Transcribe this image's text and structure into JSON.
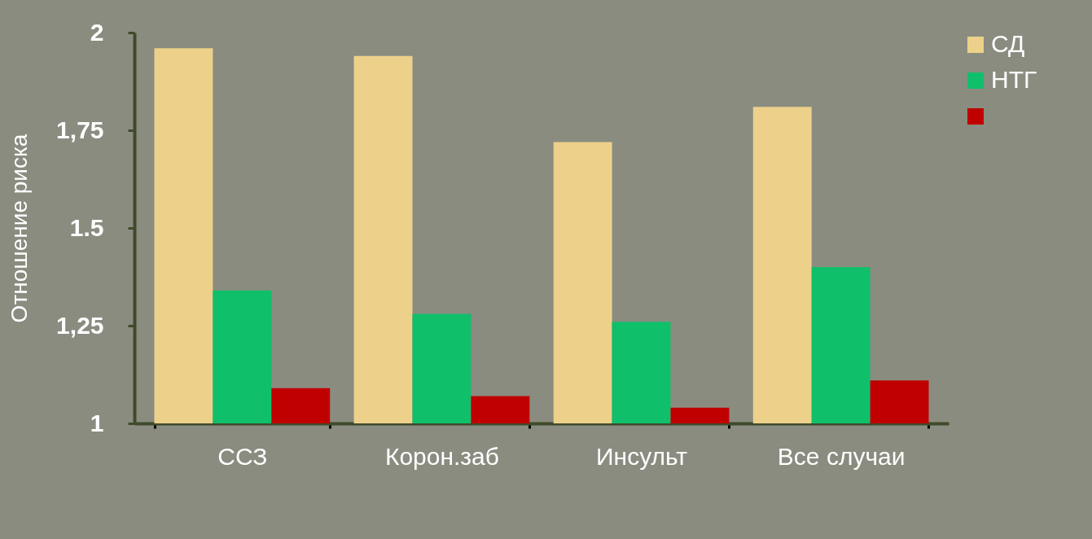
{
  "chart_data": {
    "type": "bar",
    "ylabel": "Отношение риска",
    "categories": [
      "ССЗ",
      "Корон.заб",
      "Инсульт",
      "Все случаи"
    ],
    "series": [
      {
        "name": "СД",
        "color": "#edd18b",
        "values": [
          1.96,
          1.94,
          1.72,
          1.81
        ]
      },
      {
        "name": "НТГ",
        "color": "#10bf6a",
        "values": [
          1.34,
          1.28,
          1.26,
          1.4
        ]
      },
      {
        "color": "#c00000",
        "values": [
          1.09,
          1.07,
          1.04,
          1.11
        ]
      }
    ],
    "ylim": [
      1,
      2
    ],
    "yticks": [
      1,
      {
        "value": 1.25,
        "label": "1,25"
      },
      1.5,
      {
        "value": 1.75,
        "label": "1,75"
      },
      2
    ],
    "grid": false,
    "legend": "right"
  }
}
